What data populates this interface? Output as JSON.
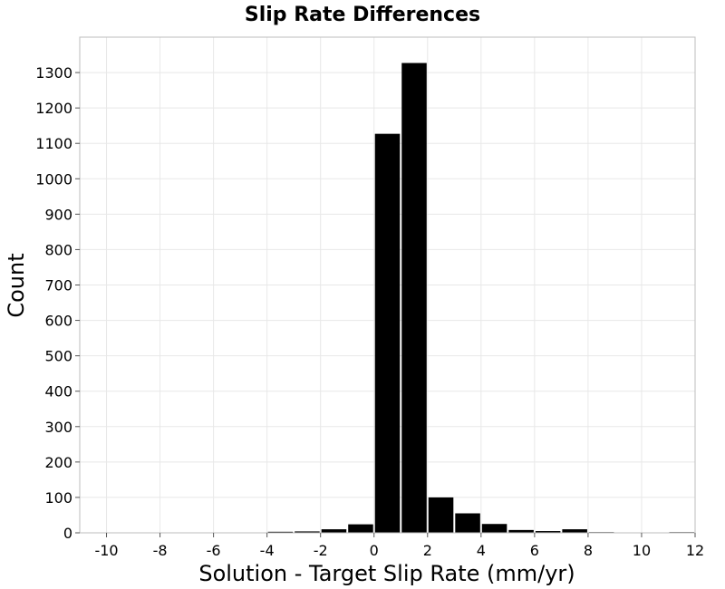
{
  "chart_data": {
    "type": "bar",
    "title": "Slip Rate Differences",
    "xlabel": "Solution - Target Slip Rate (mm/yr)",
    "ylabel": "Count",
    "xlim": [
      -11,
      12
    ],
    "ylim": [
      0,
      1400
    ],
    "x_ticks": [
      -10,
      -8,
      -6,
      -4,
      -2,
      0,
      2,
      4,
      6,
      8,
      10,
      12
    ],
    "y_ticks": [
      0,
      100,
      200,
      300,
      400,
      500,
      600,
      700,
      800,
      900,
      1000,
      1100,
      1200,
      1300
    ],
    "bin_width": 1,
    "grid": true,
    "bar_color": "#000000",
    "bars": [
      {
        "x": -10,
        "value": 0
      },
      {
        "x": -9,
        "value": 0
      },
      {
        "x": -8,
        "value": 0
      },
      {
        "x": -7,
        "value": 0
      },
      {
        "x": -6,
        "value": 0
      },
      {
        "x": -5,
        "value": 1
      },
      {
        "x": -4,
        "value": 3
      },
      {
        "x": -3,
        "value": 4
      },
      {
        "x": -2,
        "value": 10
      },
      {
        "x": -1,
        "value": 24
      },
      {
        "x": 0,
        "value": 1127
      },
      {
        "x": 1,
        "value": 1327
      },
      {
        "x": 2,
        "value": 100
      },
      {
        "x": 3,
        "value": 55
      },
      {
        "x": 4,
        "value": 25
      },
      {
        "x": 5,
        "value": 8
      },
      {
        "x": 6,
        "value": 5
      },
      {
        "x": 7,
        "value": 10
      },
      {
        "x": 8,
        "value": 2
      },
      {
        "x": 9,
        "value": 1
      },
      {
        "x": 10,
        "value": 1
      },
      {
        "x": 11,
        "value": 2
      }
    ]
  }
}
